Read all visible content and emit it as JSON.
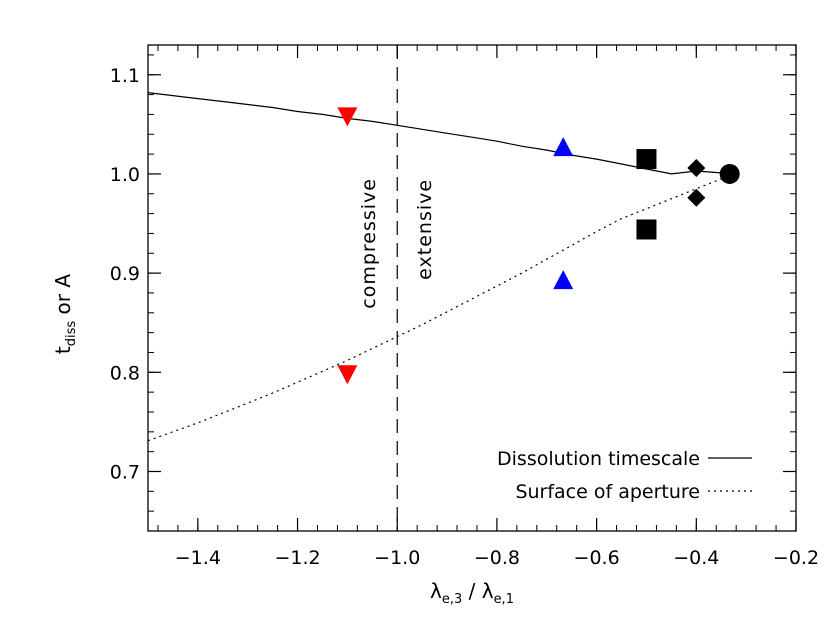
{
  "chart_data": {
    "type": "line",
    "xlabel": {
      "main": "λ",
      "sub1": "e,3",
      "sep": " / ",
      "main2": "λ",
      "sub2": "e,1"
    },
    "ylabel": {
      "main": "t",
      "sub": "diss",
      "rest": " or A"
    },
    "xlim": [
      -1.5,
      -0.2
    ],
    "ylim": [
      0.64,
      1.13
    ],
    "x_ticks": [
      -1.4,
      -1.2,
      -1.0,
      -0.8,
      -0.6,
      -0.4,
      -0.2
    ],
    "x_tick_labels": [
      "−1.4",
      "−1.2",
      "−1.0",
      "−0.8",
      "−0.6",
      "−0.4",
      "−0.2"
    ],
    "y_ticks": [
      0.7,
      0.8,
      0.9,
      1.0,
      1.1
    ],
    "y_tick_labels": [
      "0.7",
      "0.8",
      "0.9",
      "1.0",
      "1.1"
    ],
    "x_minor_step": 0.04,
    "y_minor_step": 0.02,
    "vline": {
      "x": -1.0,
      "style": "dashed"
    },
    "region_labels": [
      "compressive",
      "extensive"
    ],
    "series": [
      {
        "name": "Dissolution timescale",
        "style": "solid",
        "x": [
          -1.5,
          -1.45,
          -1.4,
          -1.35,
          -1.3,
          -1.25,
          -1.2,
          -1.15,
          -1.1,
          -1.05,
          -1.0,
          -0.95,
          -0.9,
          -0.85,
          -0.8,
          -0.75,
          -0.7,
          -0.65,
          -0.6,
          -0.55,
          -0.5,
          -0.45,
          -0.4,
          -0.35,
          -0.333
        ],
        "y": [
          1.082,
          1.079,
          1.076,
          1.073,
          1.07,
          1.067,
          1.063,
          1.06,
          1.056,
          1.053,
          1.049,
          1.045,
          1.041,
          1.037,
          1.033,
          1.028,
          1.024,
          1.019,
          1.015,
          1.01,
          1.005,
          1.0,
          1.003,
          1.001,
          1.0
        ]
      },
      {
        "name": "Surface of aperture",
        "style": "dotted",
        "x": [
          -1.5,
          -1.45,
          -1.4,
          -1.35,
          -1.3,
          -1.25,
          -1.2,
          -1.15,
          -1.1,
          -1.05,
          -1.0,
          -0.95,
          -0.9,
          -0.85,
          -0.8,
          -0.75,
          -0.7,
          -0.65,
          -0.6,
          -0.55,
          -0.5,
          -0.45,
          -0.4,
          -0.35,
          -0.333
        ],
        "y": [
          0.731,
          0.74,
          0.749,
          0.759,
          0.769,
          0.779,
          0.79,
          0.801,
          0.812,
          0.824,
          0.836,
          0.848,
          0.861,
          0.874,
          0.887,
          0.9,
          0.914,
          0.928,
          0.942,
          0.955,
          0.965,
          0.975,
          0.985,
          0.995,
          1.0
        ]
      }
    ],
    "markers": [
      {
        "name": "down-triangle-upper",
        "shape": "triangle-down",
        "color": "#ff0000",
        "x": -1.1,
        "y": 1.058
      },
      {
        "name": "down-triangle-lower",
        "shape": "triangle-down",
        "color": "#ff0000",
        "x": -1.1,
        "y": 0.798
      },
      {
        "name": "up-triangle-upper",
        "shape": "triangle-up",
        "color": "#0000ff",
        "x": -0.667,
        "y": 1.027
      },
      {
        "name": "up-triangle-lower",
        "shape": "triangle-up",
        "color": "#0000ff",
        "x": -0.667,
        "y": 0.893
      },
      {
        "name": "square-upper",
        "shape": "square",
        "color": "#000000",
        "x": -0.5,
        "y": 1.015
      },
      {
        "name": "square-lower",
        "shape": "square",
        "color": "#000000",
        "x": -0.5,
        "y": 0.944
      },
      {
        "name": "diamond-upper",
        "shape": "diamond",
        "color": "#000000",
        "x": -0.4,
        "y": 1.006
      },
      {
        "name": "diamond-lower",
        "shape": "diamond",
        "color": "#000000",
        "x": -0.4,
        "y": 0.976
      },
      {
        "name": "circle",
        "shape": "circle",
        "color": "#000000",
        "x": -0.333,
        "y": 1.0
      }
    ],
    "legend": {
      "position": "bottom-right",
      "entries": [
        {
          "label": "Dissolution timescale",
          "style": "solid"
        },
        {
          "label": "Surface of aperture",
          "style": "dotted"
        }
      ]
    }
  }
}
